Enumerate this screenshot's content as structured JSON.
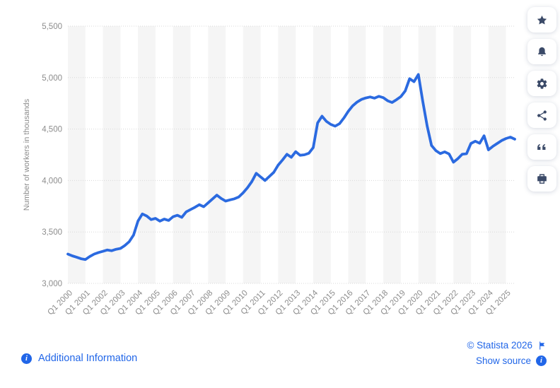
{
  "colors": {
    "line": "#2b6ae0",
    "link": "#2166e8",
    "axis_text": "#8c8c8c",
    "band": "#f5f5f5",
    "gridline": "#d8d8d8",
    "toolbar_icon": "#3b4a68"
  },
  "chart_data": {
    "type": "line",
    "title": "",
    "xlabel": "",
    "ylabel": "Number of workers in thousands",
    "frequency": "quarterly",
    "x_start": "Q1 2000",
    "x_end": "Q3 2025",
    "ylim": [
      3000,
      5500
    ],
    "y_ticks": [
      3000,
      3500,
      4000,
      4500,
      5000,
      5500
    ],
    "grid": "horizontal-dotted with alternating vertical year bands",
    "legend_position": "none",
    "x_tick_labels": [
      "Q1 2000",
      "Q1 2001",
      "Q1 2002",
      "Q1 2003",
      "Q1 2004",
      "Q1 2005",
      "Q1 2006",
      "Q1 2007",
      "Q1 2008",
      "Q1 2009",
      "Q1 2010",
      "Q1 2011",
      "Q1 2012",
      "Q1 2013",
      "Q1 2014",
      "Q1 2015",
      "Q1 2016",
      "Q1 2017",
      "Q1 2018",
      "Q1 2019",
      "Q1 2020",
      "Q1 2021",
      "Q1 2022",
      "Q1 2023",
      "Q1 2024",
      "Q1 2025"
    ],
    "series": [
      {
        "name": "Number of workers in thousands",
        "values": [
          3285,
          3268,
          3255,
          3240,
          3232,
          3262,
          3285,
          3300,
          3312,
          3325,
          3318,
          3332,
          3340,
          3368,
          3405,
          3470,
          3605,
          3675,
          3655,
          3620,
          3632,
          3605,
          3625,
          3612,
          3648,
          3662,
          3642,
          3695,
          3718,
          3740,
          3765,
          3745,
          3782,
          3820,
          3858,
          3825,
          3800,
          3812,
          3822,
          3840,
          3880,
          3930,
          3990,
          4070,
          4035,
          4000,
          4040,
          4080,
          4150,
          4200,
          4255,
          4225,
          4280,
          4245,
          4250,
          4265,
          4320,
          4560,
          4625,
          4575,
          4545,
          4528,
          4552,
          4608,
          4672,
          4725,
          4762,
          4788,
          4802,
          4812,
          4800,
          4818,
          4805,
          4775,
          4758,
          4785,
          4815,
          4870,
          4990,
          4960,
          5030,
          4770,
          4530,
          4340,
          4290,
          4262,
          4278,
          4258,
          4178,
          4212,
          4255,
          4260,
          4360,
          4382,
          4362,
          4435,
          4298,
          4332,
          4360,
          4388,
          4408,
          4422,
          4402
        ]
      }
    ]
  },
  "toolbar": {
    "buttons": [
      {
        "name": "favorite",
        "icon": "star-icon"
      },
      {
        "name": "alerts",
        "icon": "bell-icon"
      },
      {
        "name": "settings",
        "icon": "gear-icon"
      },
      {
        "name": "share",
        "icon": "share-icon"
      },
      {
        "name": "cite",
        "icon": "quote-icon"
      },
      {
        "name": "print",
        "icon": "printer-icon"
      }
    ]
  },
  "footer": {
    "additional_information": "Additional Information",
    "copyright": "© Statista 2026",
    "show_source": "Show source"
  }
}
